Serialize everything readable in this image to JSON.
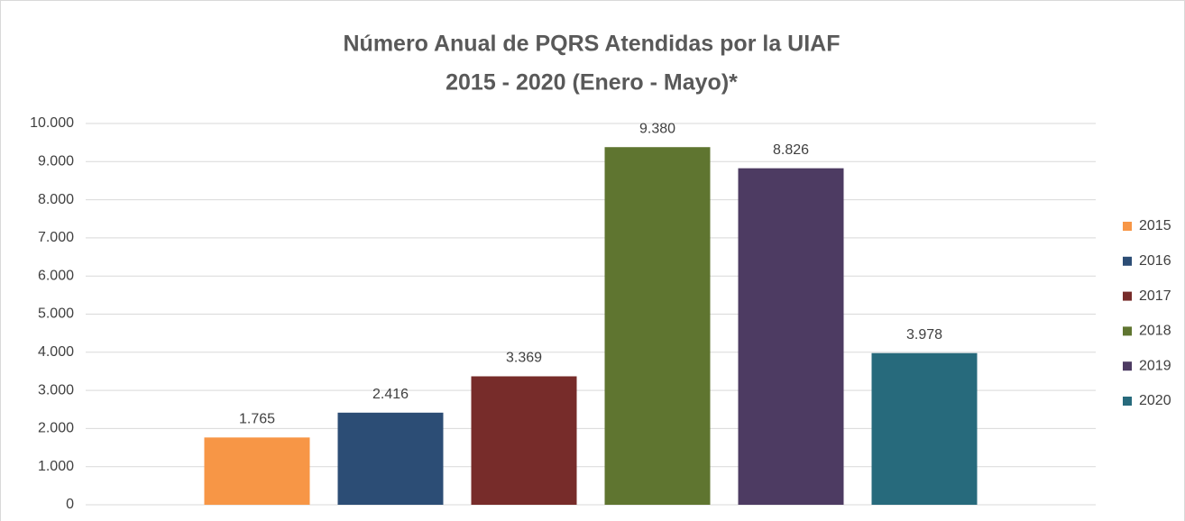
{
  "chart_data": {
    "type": "bar",
    "title": "Número Anual de PQRS Atendidas por la UIAF",
    "subtitle": "2015 - 2020 (Enero - Mayo)*",
    "categories": [
      null
    ],
    "series": [
      {
        "name": "2015",
        "color": "#f79646",
        "values": [
          1765
        ],
        "value_labels": [
          "1.765"
        ]
      },
      {
        "name": "2016",
        "color": "#2c4d75",
        "values": [
          2416
        ],
        "value_labels": [
          "2.416"
        ]
      },
      {
        "name": "2017",
        "color": "#772c2a",
        "values": [
          3369
        ],
        "value_labels": [
          "3.369"
        ]
      },
      {
        "name": "2018",
        "color": "#5f7530",
        "values": [
          9380
        ],
        "value_labels": [
          "9.380"
        ]
      },
      {
        "name": "2019",
        "color": "#4d3b62",
        "values": [
          8826
        ],
        "value_labels": [
          "8.826"
        ]
      },
      {
        "name": "2020",
        "color": "#276a7c",
        "values": [
          3978
        ],
        "value_labels": [
          "3.978"
        ]
      }
    ],
    "ylim": [
      0,
      10000
    ],
    "yticks": [
      0,
      {
        "value": 1000,
        "label": "1.000"
      },
      {
        "value": 2000,
        "label": "2.000"
      },
      {
        "value": 3000,
        "label": "3.000"
      },
      {
        "value": 4000,
        "label": "4.000"
      },
      {
        "value": 5000,
        "label": "5.000"
      },
      {
        "value": 6000,
        "label": "6.000"
      },
      {
        "value": 7000,
        "label": "7.000"
      },
      {
        "value": 8000,
        "label": "8.000"
      },
      {
        "value": 9000,
        "label": "9.000"
      },
      {
        "value": 10000,
        "label": "10.000"
      }
    ],
    "grid": true,
    "legend": "right"
  }
}
